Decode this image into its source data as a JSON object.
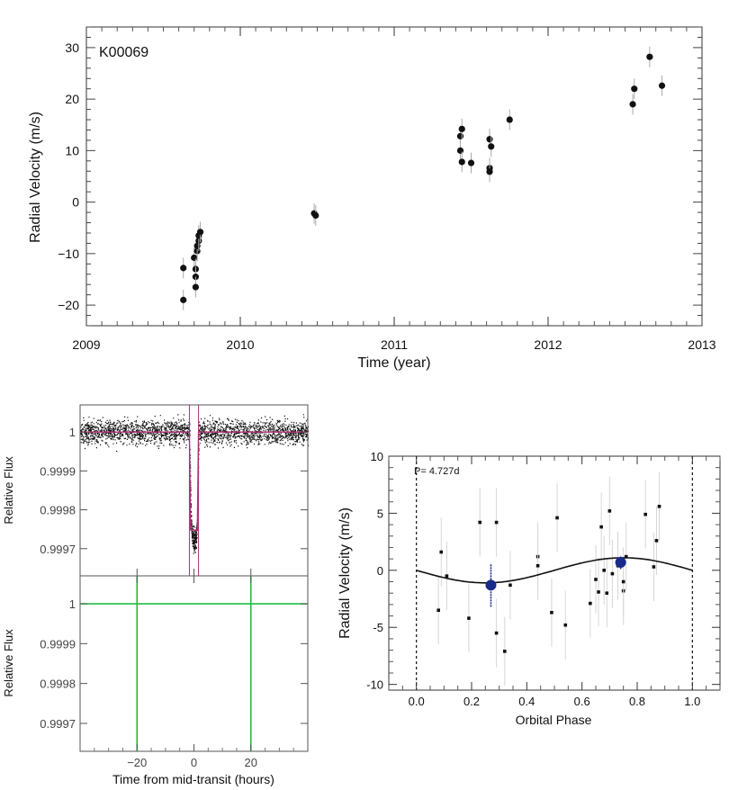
{
  "chart_data": [
    {
      "id": "rv_time",
      "type": "scatter",
      "annotation": "K00069",
      "xlabel": "Time (year)",
      "ylabel": "Radial Velocity (m/s)",
      "xlim": [
        2009,
        2013
      ],
      "ylim": [
        -24,
        34
      ],
      "xticks": [
        2009,
        2010,
        2011,
        2012,
        2013
      ],
      "yticks": [
        -20,
        -10,
        0,
        10,
        20,
        30
      ],
      "xtick_labels": [
        "2009",
        "2010",
        "2011",
        "2012",
        "2013"
      ],
      "ytick_labels": [
        "−20",
        "−10",
        "0",
        "10",
        "20",
        "30"
      ],
      "grid": false,
      "points": [
        {
          "x": 2009.63,
          "y": -12.8,
          "err": 2.0
        },
        {
          "x": 2009.63,
          "y": -19.0,
          "err": 2.0
        },
        {
          "x": 2009.7,
          "y": -10.8,
          "err": 2.0
        },
        {
          "x": 2009.71,
          "y": -13.0,
          "err": 2.0
        },
        {
          "x": 2009.71,
          "y": -14.5,
          "err": 2.0
        },
        {
          "x": 2009.71,
          "y": -16.5,
          "err": 2.0
        },
        {
          "x": 2009.72,
          "y": -9.5,
          "err": 2.0
        },
        {
          "x": 2009.72,
          "y": -8.5,
          "err": 2.0
        },
        {
          "x": 2009.73,
          "y": -7.5,
          "err": 2.0
        },
        {
          "x": 2009.73,
          "y": -6.5,
          "err": 2.0
        },
        {
          "x": 2009.74,
          "y": -5.8,
          "err": 2.0
        },
        {
          "x": 2010.48,
          "y": -2.2,
          "err": 2.0
        },
        {
          "x": 2010.49,
          "y": -2.6,
          "err": 2.0
        },
        {
          "x": 2011.43,
          "y": 12.8,
          "err": 2.0
        },
        {
          "x": 2011.44,
          "y": 14.2,
          "err": 2.0
        },
        {
          "x": 2011.43,
          "y": 10.0,
          "err": 2.0
        },
        {
          "x": 2011.44,
          "y": 7.8,
          "err": 2.0
        },
        {
          "x": 2011.5,
          "y": 7.6,
          "err": 2.0
        },
        {
          "x": 2011.62,
          "y": 12.2,
          "err": 2.0
        },
        {
          "x": 2011.63,
          "y": 10.8,
          "err": 2.0
        },
        {
          "x": 2011.62,
          "y": 6.6,
          "err": 2.0
        },
        {
          "x": 2011.62,
          "y": 5.9,
          "err": 2.0
        },
        {
          "x": 2011.75,
          "y": 16.0,
          "err": 2.0
        },
        {
          "x": 2012.55,
          "y": 19.0,
          "err": 2.0
        },
        {
          "x": 2012.56,
          "y": 22.0,
          "err": 2.0
        },
        {
          "x": 2012.66,
          "y": 28.2,
          "err": 2.0
        },
        {
          "x": 2012.74,
          "y": 22.6,
          "err": 2.0
        }
      ]
    },
    {
      "id": "transit_raw",
      "type": "scatter",
      "ylabel": "Relative Flux",
      "xlim": [
        -40,
        40
      ],
      "ylim": [
        0.99963,
        1.00007
      ],
      "yticks": [
        1,
        0.9999,
        0.9998,
        0.9997
      ],
      "ytick_labels": [
        "1",
        "0.9999",
        "0.9998",
        "0.9997"
      ],
      "transit_center_hours": 0,
      "transit_depth": 0.00028,
      "model_color": "#b0307a",
      "grid": false
    },
    {
      "id": "transit_residual",
      "type": "line",
      "xlabel": "Time from mid-transit (hours)",
      "ylabel": "Relative Flux",
      "xlim": [
        -40,
        40
      ],
      "ylim": [
        0.99963,
        1.00007
      ],
      "xticks": [
        -20,
        0,
        20
      ],
      "xtick_labels": [
        "−20",
        "0",
        "20"
      ],
      "yticks": [
        1,
        0.9999,
        0.9998,
        0.9997
      ],
      "ytick_labels": [
        "1",
        "0.9999",
        "0.9998",
        "0.9997"
      ],
      "hline": 1.0,
      "vlines": [
        -20,
        20
      ],
      "line_color": "#22bb44",
      "grid": false
    },
    {
      "id": "rv_phase",
      "type": "scatter",
      "annotation": "P= 4.727d",
      "xlabel": "Orbital Phase",
      "ylabel": "Radial Velocity (m/s)",
      "xlim": [
        -0.1,
        1.1
      ],
      "ylim": [
        -10.5,
        10
      ],
      "xticks": [
        0.0,
        0.2,
        0.4,
        0.6,
        0.8,
        1.0
      ],
      "xtick_labels": [
        "0.0",
        "0.2",
        "0.4",
        "0.6",
        "0.8",
        "1.0"
      ],
      "yticks": [
        -10,
        -5,
        0,
        5,
        10
      ],
      "ytick_labels": [
        "-10",
        "-5",
        "0",
        "5",
        "10"
      ],
      "vlines": [
        0.0,
        1.0
      ],
      "model": {
        "amplitude": 1.1,
        "phase_of_max": 0.75
      },
      "points": [
        {
          "x": 0.08,
          "y": -3.5
        },
        {
          "x": 0.09,
          "y": 1.6
        },
        {
          "x": 0.11,
          "y": -0.5
        },
        {
          "x": 0.19,
          "y": -4.2
        },
        {
          "x": 0.23,
          "y": 4.2
        },
        {
          "x": 0.29,
          "y": 4.2
        },
        {
          "x": 0.29,
          "y": -5.5
        },
        {
          "x": 0.32,
          "y": -7.1
        },
        {
          "x": 0.34,
          "y": -1.3
        },
        {
          "x": 0.44,
          "y": 1.2
        },
        {
          "x": 0.44,
          "y": 0.4
        },
        {
          "x": 0.49,
          "y": -3.7
        },
        {
          "x": 0.51,
          "y": 4.6
        },
        {
          "x": 0.54,
          "y": -4.8
        },
        {
          "x": 0.63,
          "y": -2.9
        },
        {
          "x": 0.65,
          "y": -0.8
        },
        {
          "x": 0.66,
          "y": -1.9
        },
        {
          "x": 0.67,
          "y": 3.8
        },
        {
          "x": 0.68,
          "y": 0.0
        },
        {
          "x": 0.69,
          "y": -2.0
        },
        {
          "x": 0.7,
          "y": 5.2
        },
        {
          "x": 0.71,
          "y": -0.3
        },
        {
          "x": 0.73,
          "y": 0.4
        },
        {
          "x": 0.75,
          "y": -1.8
        },
        {
          "x": 0.75,
          "y": -1.0
        },
        {
          "x": 0.76,
          "y": 1.2
        },
        {
          "x": 0.83,
          "y": 4.9
        },
        {
          "x": 0.86,
          "y": 0.3
        },
        {
          "x": 0.87,
          "y": 2.6
        },
        {
          "x": 0.88,
          "y": 5.6
        }
      ],
      "binned": [
        {
          "x": 0.27,
          "y": -1.3,
          "err": 1.9
        },
        {
          "x": 0.74,
          "y": 0.7,
          "err": 0.6
        }
      ],
      "binned_color": "#1a2a8a"
    }
  ]
}
